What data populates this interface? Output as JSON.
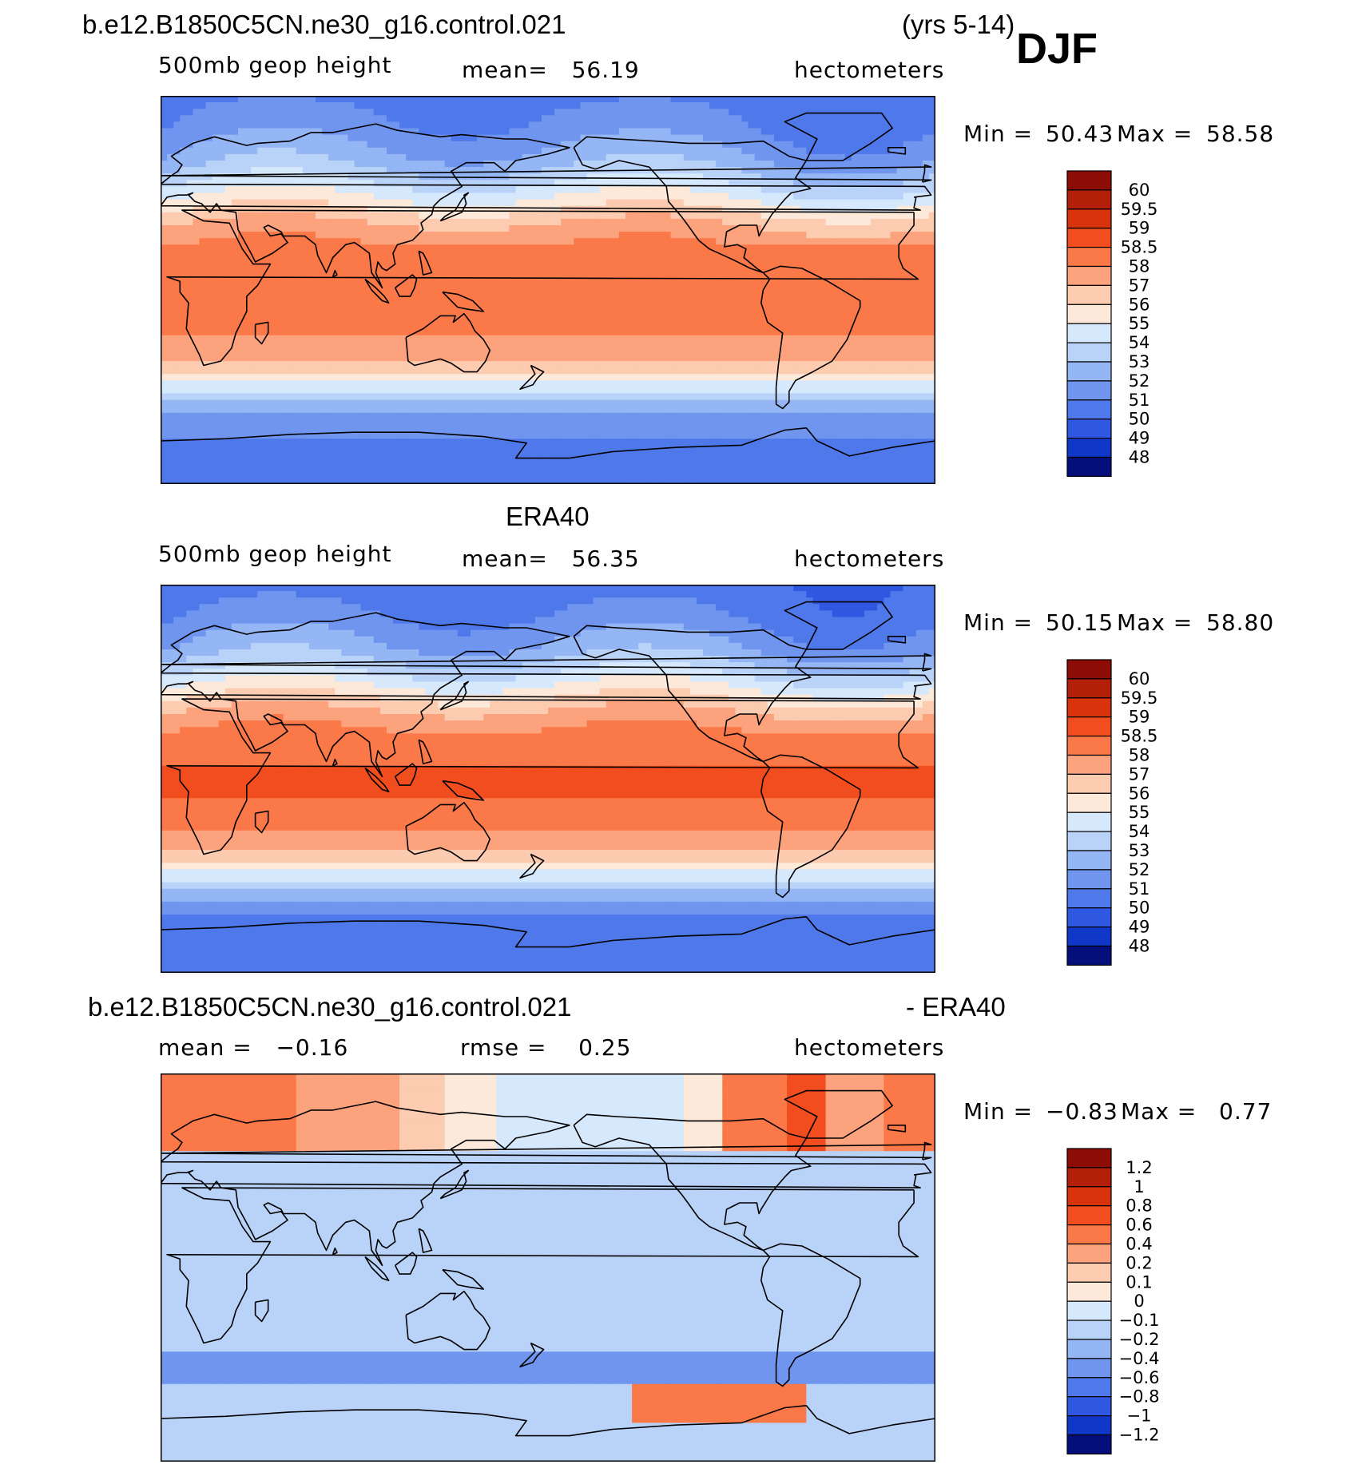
{
  "header": {
    "case_name": "b.e12.B1850C5CN.ne30_g16.control.021",
    "years": "(yrs 5-14)",
    "season": "DJF"
  },
  "colors": {
    "warm": [
      "#fde9d9",
      "#fccbb0",
      "#fca883",
      "#fb8056",
      "#f95b2b",
      "#e8380c",
      "#c52409",
      "#8e0c06"
    ],
    "cool": [
      "#d6e8fb",
      "#b8d2f8",
      "#95b6f4",
      "#6f95ef",
      "#4f78ea",
      "#2e58e2",
      "#1038c8",
      "#08289a",
      "#050f7c"
    ],
    "land_outline": "#000000"
  },
  "chart_data": [
    {
      "type": "heatmap",
      "id": "model",
      "title": "b.e12.B1850C5CN.ne30_g16.control.021",
      "variable": "500mb geop height",
      "stat_label": "mean=   56.19",
      "units": "hectometers",
      "min_label": "Min =",
      "min_value": "50.43",
      "max_label": "Max =",
      "max_value": "58.58",
      "min": 50.43,
      "max": 58.58,
      "mean": 56.19,
      "colorbar_levels": [
        "60",
        "59.5",
        "59",
        "58.5",
        "58",
        "57",
        "56",
        "55",
        "54",
        "53",
        "52",
        "51",
        "50",
        "49",
        "48"
      ],
      "colorbar_colors": [
        "#8e0c06",
        "#b41f0a",
        "#d8330c",
        "#f24d1f",
        "#fb7848",
        "#fca37e",
        "#fccbb0",
        "#fde9d9",
        "#d6e8fb",
        "#b8d2f8",
        "#95b6f4",
        "#6f95ef",
        "#4f78ea",
        "#2e58e2",
        "#1038c8",
        "#050f7c"
      ],
      "zonal_profile_lat": [
        90,
        75,
        60,
        50,
        40,
        30,
        20,
        0,
        -20,
        -30,
        -40,
        -50,
        -60,
        -75,
        -90
      ],
      "zonal_profile_value": [
        50.6,
        51.2,
        52.4,
        53.8,
        55.4,
        57.1,
        58.1,
        58.3,
        58.0,
        57.3,
        55.6,
        53.2,
        51.3,
        50.8,
        50.7
      ]
    },
    {
      "type": "heatmap",
      "id": "obs",
      "title": "ERA40",
      "variable": "500mb geop height",
      "stat_label": "mean=   56.35",
      "units": "hectometers",
      "min_label": "Min =",
      "min_value": "50.15",
      "max_label": "Max =",
      "max_value": "58.80",
      "min": 50.15,
      "max": 58.8,
      "mean": 56.35,
      "colorbar_levels": [
        "60",
        "59.5",
        "59",
        "58.5",
        "58",
        "57",
        "56",
        "55",
        "54",
        "53",
        "52",
        "51",
        "50",
        "49",
        "48"
      ],
      "colorbar_colors": [
        "#8e0c06",
        "#b41f0a",
        "#d8330c",
        "#f24d1f",
        "#fb7848",
        "#fca37e",
        "#fccbb0",
        "#fde9d9",
        "#d6e8fb",
        "#b8d2f8",
        "#95b6f4",
        "#6f95ef",
        "#4f78ea",
        "#2e58e2",
        "#1038c8",
        "#050f7c"
      ],
      "zonal_profile_lat": [
        90,
        75,
        60,
        50,
        40,
        30,
        20,
        0,
        -20,
        -30,
        -40,
        -50,
        -60,
        -75,
        -90
      ],
      "zonal_profile_value": [
        50.3,
        51.0,
        52.2,
        53.7,
        55.5,
        57.2,
        58.3,
        58.6,
        58.4,
        57.4,
        55.7,
        53.1,
        51.2,
        50.5,
        50.4
      ]
    },
    {
      "type": "heatmap",
      "id": "diff",
      "title": "b.e12.B1850C5CN.ne30_g16.control.021",
      "title_suffix": "- ERA40",
      "stat_label": "mean =   −0.16",
      "stat2_label": "rmse =    0.25",
      "units": "hectometers",
      "min_label": "Min =",
      "min_value": "−0.83",
      "max_label": "Max =",
      "max_value": "0.77",
      "min": -0.83,
      "max": 0.77,
      "mean": -0.16,
      "rmse": 0.25,
      "colorbar_levels": [
        "1.2",
        "1",
        "0.8",
        "0.6",
        "0.4",
        "0.2",
        "0.1",
        "0",
        "−0.1",
        "−0.2",
        "−0.4",
        "−0.6",
        "−0.8",
        "−1",
        "−1.2"
      ],
      "colorbar_colors": [
        "#8e0c06",
        "#b41f0a",
        "#d8330c",
        "#f24d1f",
        "#fb7848",
        "#fca37e",
        "#fccbb0",
        "#fde9d9",
        "#d6e8fb",
        "#b8d2f8",
        "#95b6f4",
        "#6f95ef",
        "#4f78ea",
        "#2e58e2",
        "#1038c8",
        "#050f7c"
      ]
    }
  ]
}
